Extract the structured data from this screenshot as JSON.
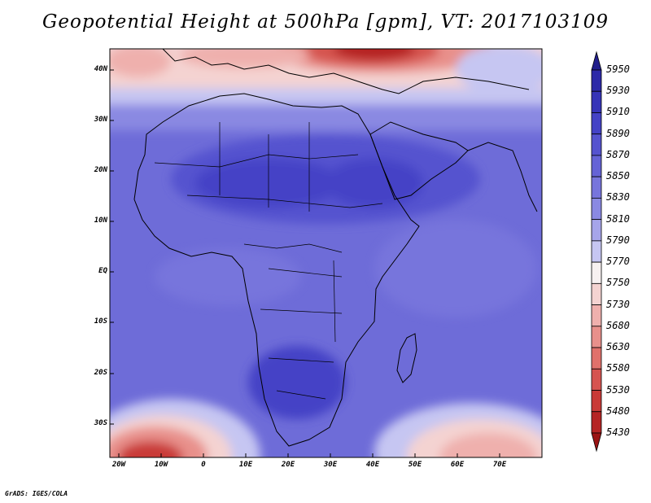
{
  "title": "Geopotential Height at 500hPa [gpm], VT: 2017103109",
  "credit": "GrADS: IGES/COLA",
  "map": {
    "lat_labels": [
      "40N",
      "30N",
      "20N",
      "10N",
      "EQ",
      "10S",
      "20S",
      "30S"
    ],
    "lon_labels": [
      "20W",
      "10W",
      "0",
      "10E",
      "20E",
      "30E",
      "40E",
      "50E",
      "60E",
      "70E"
    ]
  },
  "colorbar": {
    "levels": [
      "5950",
      "5930",
      "5910",
      "5890",
      "5870",
      "5850",
      "5830",
      "5810",
      "5790",
      "5770",
      "5750",
      "5730",
      "5680",
      "5630",
      "5580",
      "5530",
      "5480",
      "5430"
    ],
    "colors": [
      "#221f8c",
      "#2c29a8",
      "#3634b8",
      "#4442c6",
      "#5553cf",
      "#6563d6",
      "#7775dc",
      "#8a89e2",
      "#a6a5ea",
      "#c6c6f2",
      "#f7f1f1",
      "#f4d3d1",
      "#efb0ad",
      "#e8908b",
      "#e0716b",
      "#d65450",
      "#c93a37",
      "#b52424",
      "#9b1414"
    ]
  }
}
